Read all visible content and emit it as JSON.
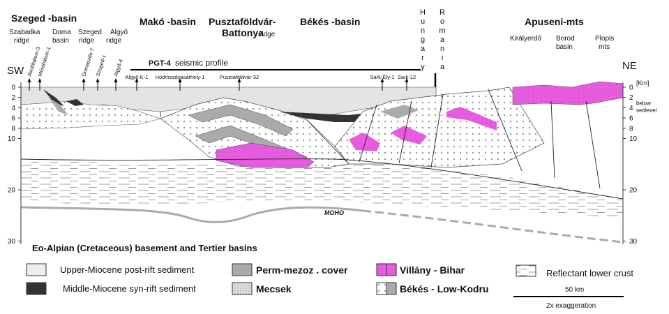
{
  "header": {
    "regions": [
      {
        "lines": [
          "Szeged -basin"
        ]
      },
      {
        "lines": [
          "Szabadka",
          "ridge"
        ]
      },
      {
        "lines": [
          "Doma",
          "basin"
        ]
      },
      {
        "lines": [
          "Szeged",
          "ridge"
        ]
      },
      {
        "lines": [
          "Algyő",
          "ridge"
        ]
      },
      {
        "lines": [
          "Makó -basin"
        ]
      },
      {
        "lines": [
          "Pusztaföldvár-",
          "Battonya"
        ]
      },
      {
        "lines": [
          "ridge"
        ]
      },
      {
        "lines": [
          "Békés -basin"
        ]
      },
      {
        "lines": [
          "Apuseni-mts"
        ]
      },
      {
        "lines": [
          "Királyerdő"
        ]
      },
      {
        "lines": [
          "Borod",
          "basin"
        ]
      },
      {
        "lines": [
          "Plopis",
          "mts"
        ]
      }
    ],
    "countries": [
      "Hungary",
      "Romania"
    ],
    "sw": "SW",
    "ne": "NE",
    "profile": {
      "name": "PGT-4",
      "text": "seismic profile"
    }
  },
  "wells": [
    "Asotthalom-3",
    "Mórahalom-1",
    "Domaszék-7",
    "Szeged-1",
    "Algyő-4",
    "Algyő-K-1",
    "Hódmezővásárhely-1",
    "Pusztaföldvár-32",
    "Sark-Ély-1",
    "Sark-12"
  ],
  "depth_axis": {
    "left_ticks": [
      0,
      2,
      4,
      6,
      8,
      10,
      20,
      30
    ],
    "right_ticks": [
      0,
      2,
      4,
      6,
      8,
      10,
      20,
      30
    ],
    "unit": "[Km]",
    "unit_note": [
      "below",
      "sealevel"
    ]
  },
  "section": {
    "moho": "MOHO",
    "basement": "Eo-Alpian (Cretaceous) basement and Tertier basins"
  },
  "legend": {
    "items": [
      "Upper-Miocene post-rift sediment",
      "Middle-Miocene syn-rift sediment",
      "Perm-mezoz . cover",
      "Mecsek",
      "Villány - Bihar",
      "Békés - Low-Kodru",
      "Reflectant lower crust"
    ],
    "scale": "50 km",
    "exaggeration": "2x exaggeration"
  }
}
